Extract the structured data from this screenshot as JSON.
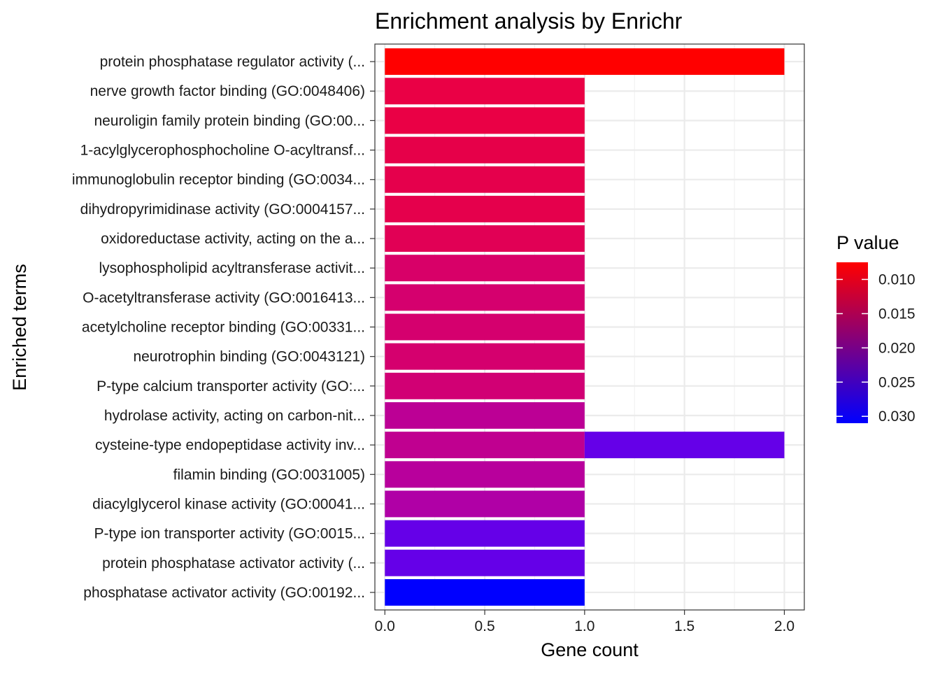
{
  "chart_data": {
    "type": "bar",
    "orientation": "horizontal",
    "stacked": true,
    "title": "Enrichment analysis by Enrichr",
    "xlabel": "Gene count",
    "ylabel": "Enriched terms",
    "xlim": [
      -0.05,
      2.1
    ],
    "x_ticks": [
      "0.0",
      "0.5",
      "1.0",
      "1.5",
      "2.0"
    ],
    "x_tick_values": [
      0,
      0.5,
      1.0,
      1.5,
      2.0
    ],
    "grid": true,
    "legend": {
      "title": "P value",
      "position": "right",
      "labels": [
        "0.010",
        "0.015",
        "0.020",
        "0.025",
        "0.030"
      ],
      "values": [
        0.01,
        0.015,
        0.02,
        0.025,
        0.03
      ],
      "range": [
        0.0075,
        0.031
      ],
      "low_color": "#FF0000",
      "high_color": "#0000FF"
    },
    "categories": [
      "protein phosphatase regulator activity (...",
      "nerve growth factor binding (GO:0048406)",
      "neuroligin family protein binding (GO:00...",
      "1-acylglycerophosphocholine O-acyltransf...",
      "immunoglobulin receptor binding (GO:0034...",
      "dihydropyrimidinase activity (GO:0004157...",
      "oxidoreductase activity, acting on the a...",
      "lysophospholipid acyltransferase activit...",
      "O-acetyltransferase activity (GO:0016413...",
      "acetylcholine receptor binding (GO:00331...",
      "neurotrophin binding (GO:0043121)",
      "P-type calcium transporter activity (GO:...",
      "hydrolase activity, acting on carbon-nit...",
      "cysteine-type endopeptidase activity inv...",
      "filamin binding (GO:0031005)",
      "diacylglycerol kinase activity (GO:00041...",
      "P-type ion transporter activity (GO:0015...",
      "protein phosphatase activator activity (...",
      "phosphatase activator activity (GO:00192..."
    ],
    "bars": [
      {
        "term": 0,
        "start": 0,
        "value": 2,
        "p_value": 0.0076,
        "color": "#FF0000"
      },
      {
        "term": 1,
        "start": 0,
        "value": 1,
        "p_value": 0.0135,
        "color": "#EA0045"
      },
      {
        "term": 2,
        "start": 0,
        "value": 1,
        "p_value": 0.0135,
        "color": "#EA0045"
      },
      {
        "term": 3,
        "start": 0,
        "value": 1,
        "p_value": 0.0145,
        "color": "#E60049"
      },
      {
        "term": 4,
        "start": 0,
        "value": 1,
        "p_value": 0.0148,
        "color": "#E5004C"
      },
      {
        "term": 5,
        "start": 0,
        "value": 1,
        "p_value": 0.0148,
        "color": "#E5004C"
      },
      {
        "term": 6,
        "start": 0,
        "value": 1,
        "p_value": 0.016,
        "color": "#E10055"
      },
      {
        "term": 7,
        "start": 0,
        "value": 1,
        "p_value": 0.018,
        "color": "#D80068"
      },
      {
        "term": 8,
        "start": 0,
        "value": 1,
        "p_value": 0.0185,
        "color": "#D5006E"
      },
      {
        "term": 9,
        "start": 0,
        "value": 1,
        "p_value": 0.0185,
        "color": "#D5006E"
      },
      {
        "term": 10,
        "start": 0,
        "value": 1,
        "p_value": 0.0185,
        "color": "#D5006E"
      },
      {
        "term": 11,
        "start": 0,
        "value": 1,
        "p_value": 0.019,
        "color": "#D10074"
      },
      {
        "term": 12,
        "start": 0,
        "value": 1,
        "p_value": 0.021,
        "color": "#BC0095"
      },
      {
        "term": 13,
        "start": 0,
        "value": 1,
        "p_value": 0.0205,
        "color": "#C00090"
      },
      {
        "term": 13,
        "start": 1,
        "value": 1,
        "p_value": 0.0285,
        "color": "#6500E8"
      },
      {
        "term": 14,
        "start": 0,
        "value": 1,
        "p_value": 0.0215,
        "color": "#B8009C"
      },
      {
        "term": 15,
        "start": 0,
        "value": 1,
        "p_value": 0.022,
        "color": "#B000A6"
      },
      {
        "term": 16,
        "start": 0,
        "value": 1,
        "p_value": 0.0285,
        "color": "#6500E8"
      },
      {
        "term": 17,
        "start": 0,
        "value": 1,
        "p_value": 0.0285,
        "color": "#6500E8"
      },
      {
        "term": 18,
        "start": 0,
        "value": 1,
        "p_value": 0.031,
        "color": "#0000FF"
      }
    ]
  }
}
